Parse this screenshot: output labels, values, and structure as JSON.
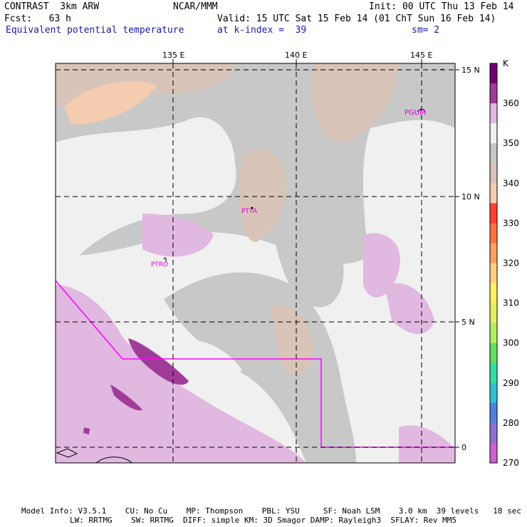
{
  "header": {
    "line1_left": "CONTRAST  3km ARW",
    "line1_mid": "NCAR/MMM",
    "line1_right": "Init: 00 UTC Thu 13 Feb 14",
    "line2_left": "Fcst:   63 h",
    "line2_right": "Valid: 15 UTC Sat 15 Feb 14 (01 ChT Sun 16 Feb 14)",
    "line3_left": "Equivalent potential temperature",
    "line3_mid": "at k-index =  39",
    "line3_right": "sm= 2"
  },
  "map": {
    "lon_labels": [
      "135 E",
      "140 E",
      "145 E"
    ],
    "lat_labels": [
      "15 N",
      "10 N",
      "5 N",
      "0"
    ],
    "stations": [
      "PGUM",
      "PTYA",
      "PTRO"
    ],
    "colors": {
      "outline": "#ff00ff",
      "station": "#e000e0",
      "grid": "#000000"
    }
  },
  "legend": {
    "unit": "K",
    "ticks": [
      "360",
      "350",
      "340",
      "330",
      "320",
      "310",
      "300",
      "290",
      "280",
      "270"
    ],
    "colors": [
      "#700070",
      "#a03c98",
      "#e0b8e0",
      "#f0f0f0",
      "#c8c8c8",
      "#d8c4b8",
      "#f4ccb0",
      "#ff4030",
      "#ff7040",
      "#ffa060",
      "#ffd080",
      "#fff060",
      "#e0f060",
      "#b0f060",
      "#60e060",
      "#30e0a0",
      "#30c0d0",
      "#5080e0",
      "#9070d0",
      "#d060d0"
    ]
  },
  "footer": {
    "line1": "Model Info: V3.5.1    CU: No Cu    MP: Thompson    PBL: YSU     SF: Noah LSM    3.0 km  39 levels   18 sec",
    "line2": "LW: RRTMG    SW: RRTMG  DIFF: simple KM: 3D Smagor DAMP: Rayleigh3  SFLAY: Rev MM5"
  }
}
